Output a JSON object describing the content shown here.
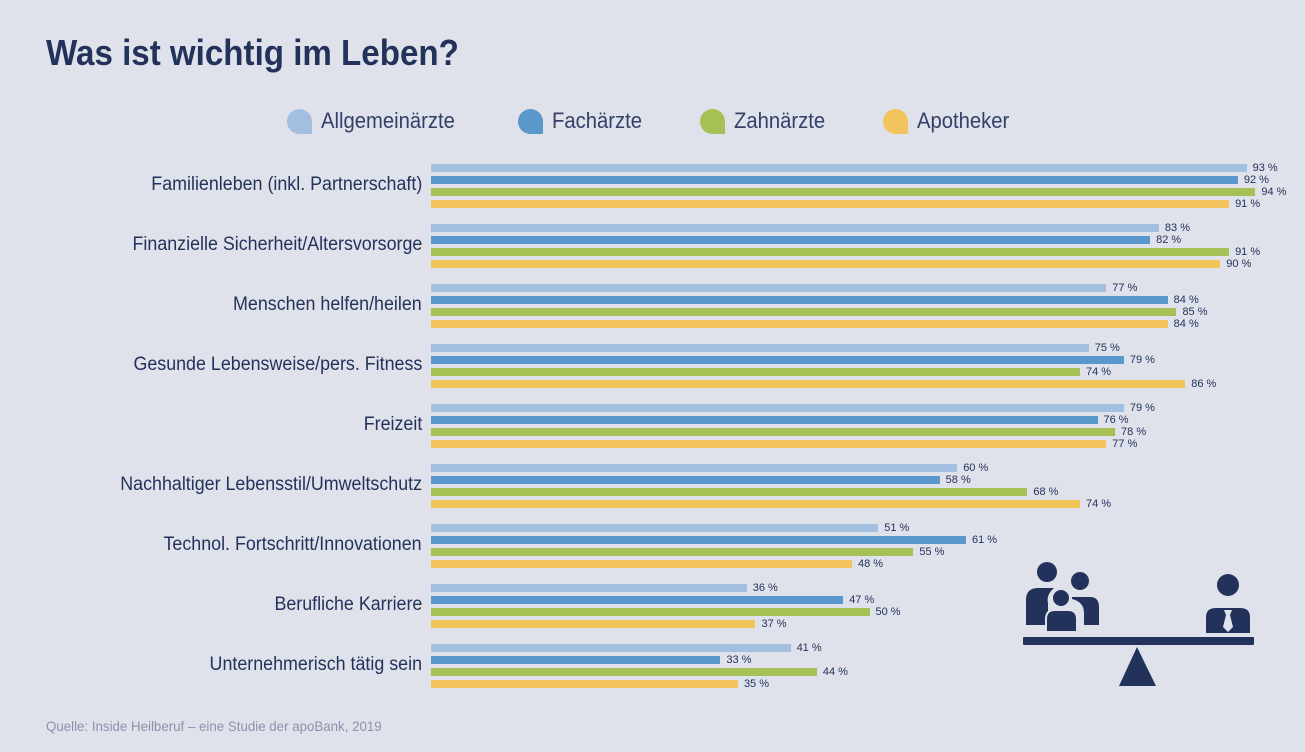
{
  "title": "Was ist wichtig im Leben?",
  "source": "Quelle: Inside Heilberuf – eine Studie der apoBank, 2019",
  "legend": [
    {
      "label": "Allgemeinärzte",
      "color": "#a2bfdf"
    },
    {
      "label": "Fachärzte",
      "color": "#5a97cb"
    },
    {
      "label": "Zahnärzte",
      "color": "#a5c054"
    },
    {
      "label": "Apotheker",
      "color": "#f3c45c"
    }
  ],
  "illustration": {
    "icon": "scale-balance-family-vs-businessman-icon",
    "color": "#23325b"
  },
  "chart_data": {
    "type": "bar",
    "orientation": "horizontal",
    "title": "Was ist wichtig im Leben?",
    "xlabel": "",
    "ylabel": "",
    "unit": "%",
    "xlim": [
      0,
      100
    ],
    "grid": false,
    "legend_position": "top",
    "categories": [
      "Familienleben (inkl. Partnerschaft)",
      "Finanzielle Sicherheit/Altersvorsorge",
      "Menschen helfen/heilen",
      "Gesunde Lebensweise/pers. Fitness",
      "Freizeit",
      "Nachhaltiger Lebensstil/Umweltschutz",
      "Technol. Fortschritt/Innovationen",
      "Berufliche Karriere",
      "Unternehmerisch tätig sein"
    ],
    "series": [
      {
        "name": "Allgemeinärzte",
        "color": "#a2bfdf",
        "values": [
          93,
          83,
          77,
          75,
          79,
          60,
          51,
          36,
          41
        ]
      },
      {
        "name": "Fachärzte",
        "color": "#5a97cb",
        "values": [
          92,
          82,
          84,
          79,
          76,
          58,
          61,
          47,
          33
        ]
      },
      {
        "name": "Zahnärzte",
        "color": "#a5c054",
        "values": [
          94,
          91,
          85,
          74,
          78,
          68,
          55,
          50,
          44
        ]
      },
      {
        "name": "Apotheker",
        "color": "#f3c45c",
        "values": [
          91,
          90,
          84,
          86,
          77,
          74,
          48,
          37,
          35
        ]
      }
    ]
  }
}
